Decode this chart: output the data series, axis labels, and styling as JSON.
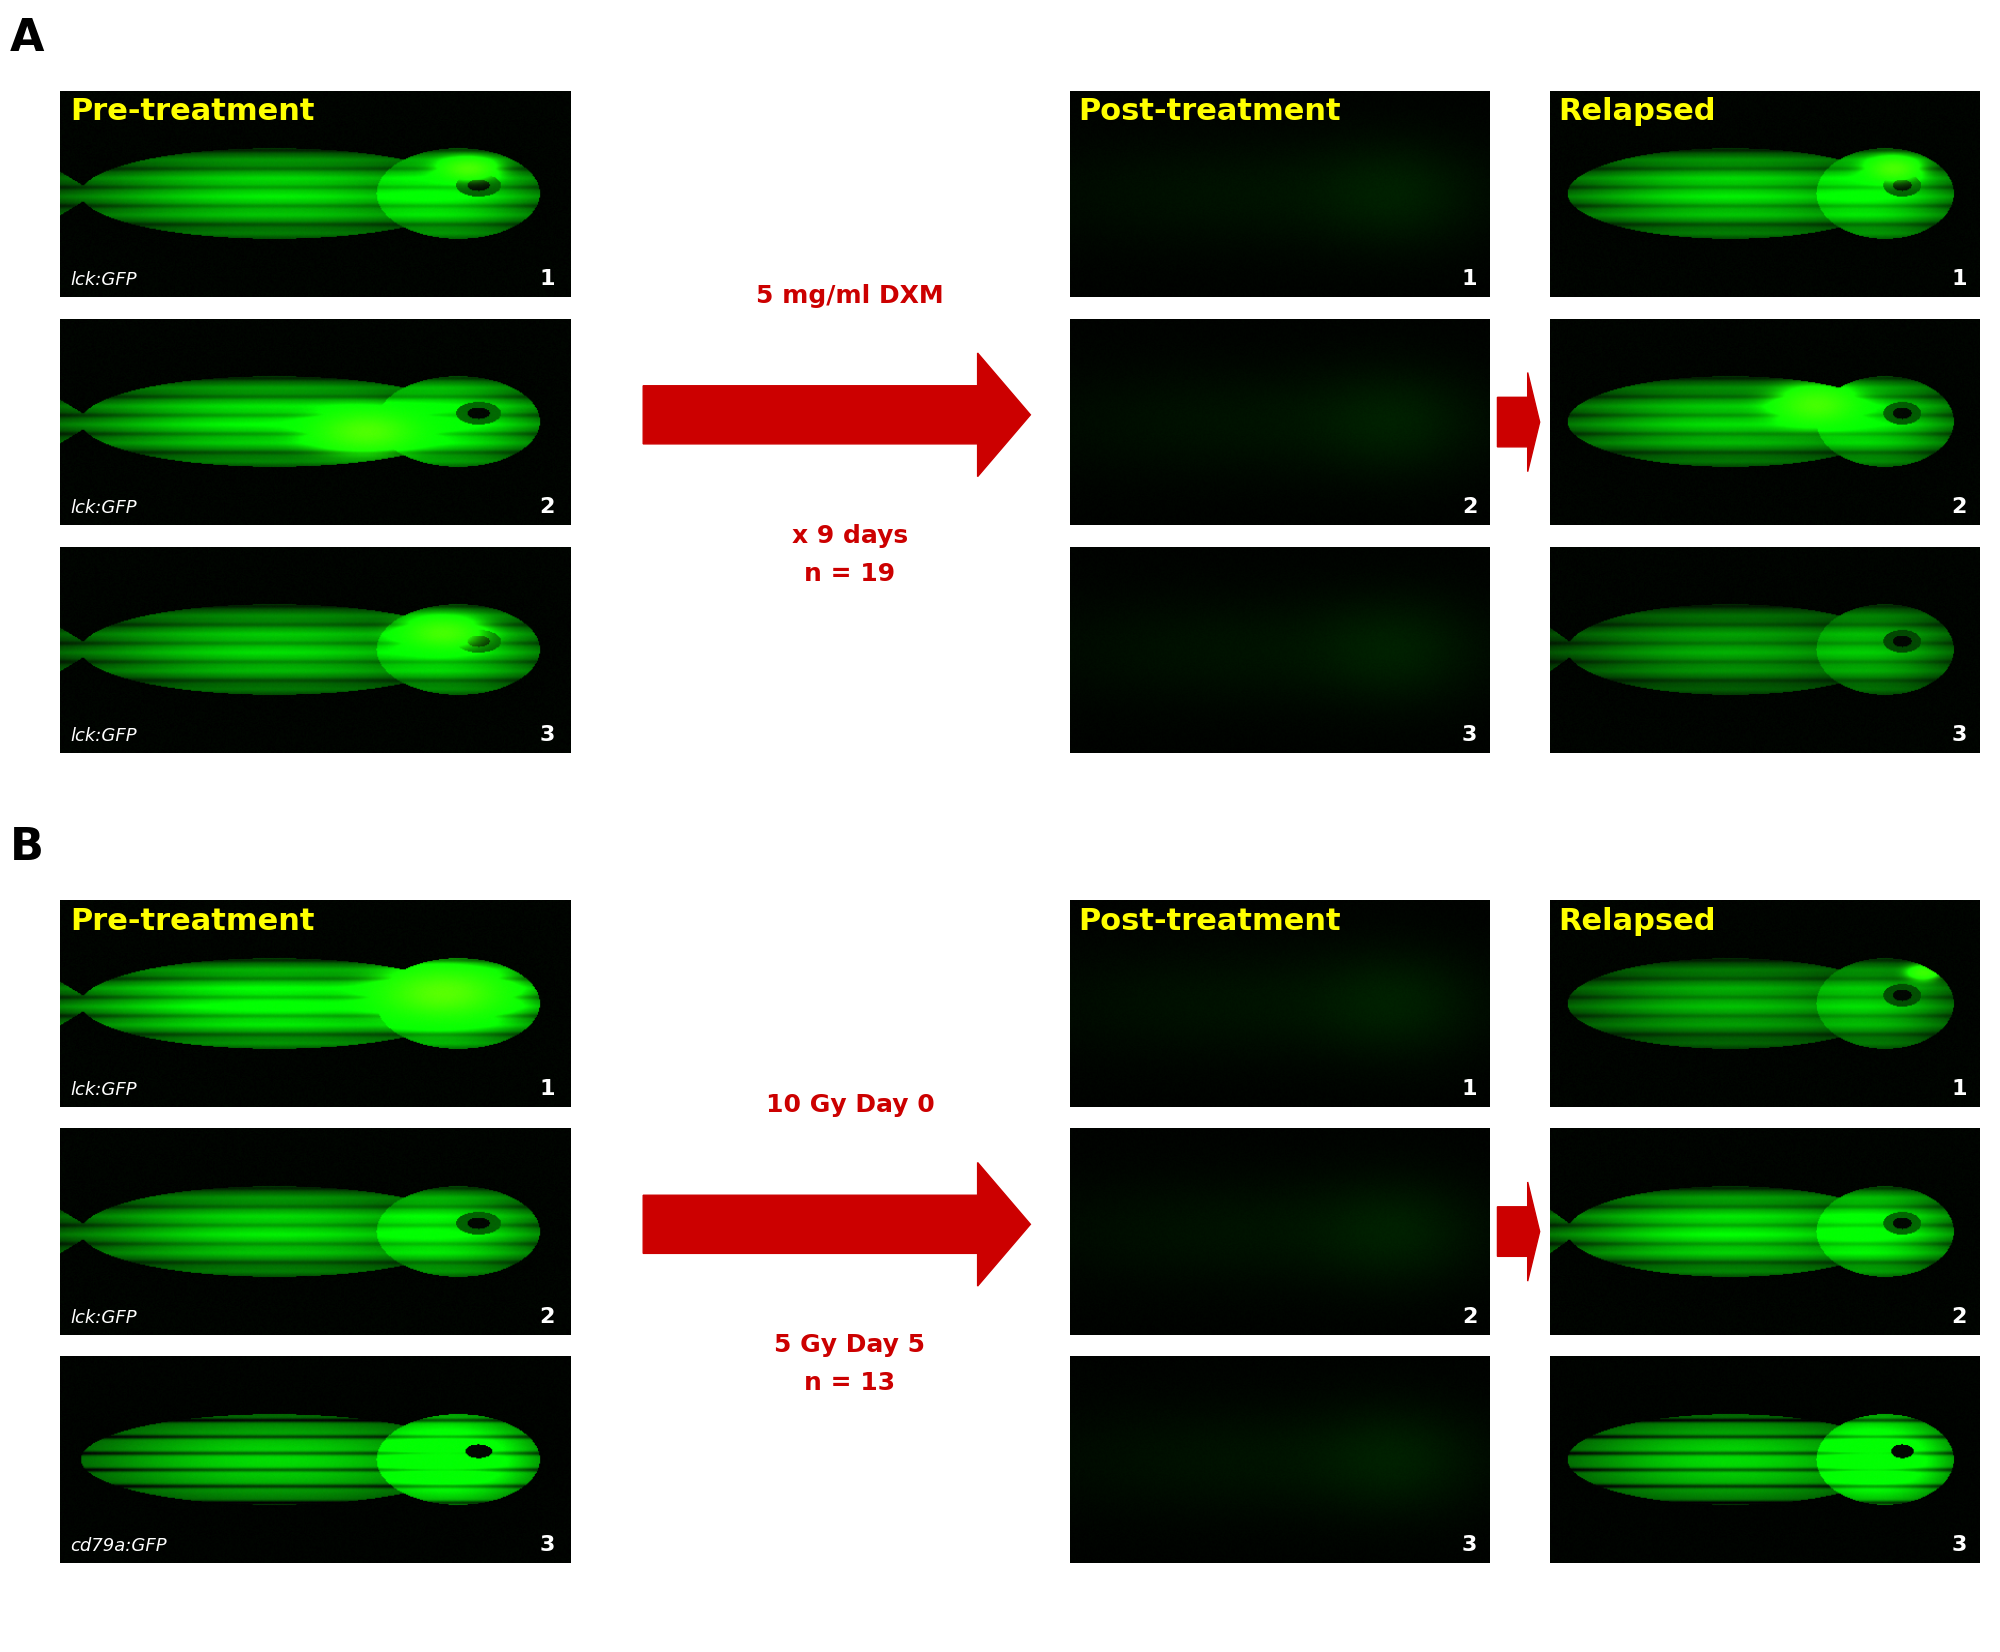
{
  "fig_width": 20.0,
  "fig_height": 16.52,
  "bg_color": "#ffffff",
  "panel_bg": "#000000",
  "label_A": "A",
  "label_B": "B",
  "label_font_size": 32,
  "label_font_weight": "bold",
  "header_color": "#ffff00",
  "header_fontsize": 22,
  "header_fontweight": "bold",
  "arrow_color": "#cc0000",
  "arrow_text_A_line1": "5 mg/ml DXM",
  "arrow_text_A_line2": "x 9 days",
  "arrow_text_A_line3": "n = 19",
  "arrow_text_B_line1": "10 Gy Day 0",
  "arrow_text_B_line2": "5 Gy Day 5",
  "arrow_text_B_line3": "n = 13",
  "arrow_text_color": "#cc0000",
  "arrow_text_fontsize": 18,
  "arrow_text_fontweight": "bold",
  "number_color": "#ffffff",
  "number_fontsize": 16,
  "italic_label_color": "#ffffff",
  "italic_label_fontsize": 13,
  "row_labels_A": [
    "lck:GFP",
    "lck:GFP",
    "lck:GFP"
  ],
  "row_labels_B": [
    "lck:GFP",
    "lck:GFP",
    "cd79a:GFP"
  ]
}
